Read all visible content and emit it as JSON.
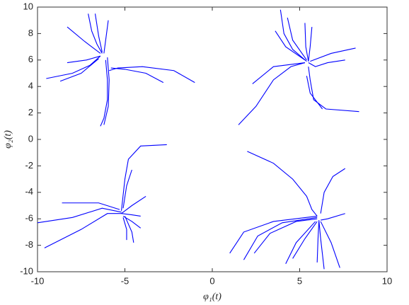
{
  "chart_data": {
    "type": "line",
    "xlabel": "φ₁(t)",
    "ylabel": "φ₂(t)",
    "color": "#0000ff",
    "xlim": [
      -10,
      10
    ],
    "xticks": [
      -10,
      -5,
      0,
      5,
      10
    ],
    "ylim": [
      -10,
      10
    ],
    "yticks": [
      -10,
      -8,
      -6,
      -4,
      -2,
      0,
      2,
      4,
      6,
      8,
      10
    ],
    "grid": false,
    "series": [
      {
        "x": [
          -7.1,
          -6.9,
          -6.6,
          -6.3
        ],
        "values": [
          9.5,
          8.2,
          7.2,
          6.5
        ]
      },
      {
        "x": [
          -8.3,
          -7.3,
          -6.4
        ],
        "values": [
          8.5,
          7.4,
          6.5
        ]
      },
      {
        "x": [
          -5.95,
          -6.1,
          -6.2
        ],
        "values": [
          9.0,
          7.5,
          6.5
        ]
      },
      {
        "x": [
          -6.7,
          -6.5,
          -6.3
        ],
        "values": [
          9.5,
          7.8,
          6.6
        ]
      },
      {
        "x": [
          -9.5,
          -8,
          -7,
          -6.4
        ],
        "values": [
          4.6,
          5.0,
          5.6,
          6.3
        ]
      },
      {
        "x": [
          -8.7,
          -7.5,
          -6.5
        ],
        "values": [
          4.4,
          5.0,
          6.1
        ]
      },
      {
        "x": [
          -8.3,
          -7.2,
          -6.4
        ],
        "values": [
          5.8,
          6.0,
          6.3
        ]
      },
      {
        "x": [
          -1,
          -2.2,
          -4,
          -5.4,
          -5.9
        ],
        "values": [
          4.3,
          5.2,
          5.5,
          5.4,
          5.2
        ]
      },
      {
        "x": [
          -2.8,
          -3.8,
          -5.0,
          -5.8
        ],
        "values": [
          4.3,
          5.0,
          5.3,
          5.4
        ]
      },
      {
        "x": [
          -6.1,
          -6.0,
          -6.0,
          -6.2,
          -6.4
        ],
        "values": [
          6.0,
          4.5,
          3.0,
          1.6,
          1.0
        ]
      },
      {
        "x": [
          -6.0,
          -5.9,
          -5.95,
          -6.2
        ],
        "values": [
          6.2,
          4.5,
          2.5,
          1.1
        ]
      },
      {
        "x": [
          3.9,
          4.1,
          4.6,
          5.4
        ],
        "values": [
          9.8,
          8,
          6.8,
          5.9
        ]
      },
      {
        "x": [
          4.3,
          4.6,
          5.4
        ],
        "values": [
          9.2,
          7.5,
          6.0
        ]
      },
      {
        "x": [
          5.3,
          5.35,
          5.5
        ],
        "values": [
          8.8,
          7,
          5.9
        ]
      },
      {
        "x": [
          5.7,
          5.6,
          5.5
        ],
        "values": [
          8.5,
          7,
          5.9
        ]
      },
      {
        "x": [
          3.6,
          4.2,
          5.3
        ],
        "values": [
          8.2,
          7,
          6.0
        ]
      },
      {
        "x": [
          8.2,
          6.8,
          5.6
        ],
        "values": [
          6.9,
          6.5,
          5.9
        ]
      },
      {
        "x": [
          7.6,
          6.6,
          5.9,
          5.5
        ],
        "values": [
          6.0,
          5.8,
          5.5,
          5.8
        ]
      },
      {
        "x": [
          2.3,
          3.5,
          5.3
        ],
        "values": [
          4.2,
          5.5,
          5.8
        ]
      },
      {
        "x": [
          1.5,
          2.5,
          3.5,
          4.5,
          5.3
        ],
        "values": [
          1.1,
          2.5,
          4.5,
          5.5,
          5.8
        ]
      },
      {
        "x": [
          5.5,
          5.6,
          5.8,
          6.5,
          8.4
        ],
        "values": [
          5.5,
          4.5,
          3,
          2.3,
          2.1
        ]
      },
      {
        "x": [
          5.4,
          5.6,
          6.3
        ],
        "values": [
          4.8,
          3.5,
          2.3
        ]
      },
      {
        "x": [
          -10,
          -8,
          -6.3,
          -5.2
        ],
        "values": [
          -6.3,
          -5.9,
          -5.2,
          -5.5
        ]
      },
      {
        "x": [
          -9.6,
          -7.5,
          -6,
          -5.2
        ],
        "values": [
          -8.2,
          -6.8,
          -5.6,
          -5.6
        ]
      },
      {
        "x": [
          -8.6,
          -6.5,
          -5.3
        ],
        "values": [
          -4.8,
          -4.8,
          -5.3
        ]
      },
      {
        "x": [
          -2.6,
          -4.1,
          -4.8,
          -5.0,
          -5.2
        ],
        "values": [
          -0.4,
          -0.5,
          -1.5,
          -3,
          -5.4
        ]
      },
      {
        "x": [
          -4.6,
          -4.9,
          -5.1
        ],
        "values": [
          -2.3,
          -3.5,
          -5.2
        ]
      },
      {
        "x": [
          -3.8,
          -4.6,
          -5.2
        ],
        "values": [
          -4.3,
          -5.0,
          -5.6
        ]
      },
      {
        "x": [
          -5.1,
          -4.9,
          -4.9
        ],
        "values": [
          -5.9,
          -6.8,
          -7.6
        ]
      },
      {
        "x": [
          -5.0,
          -4.6,
          -4.5
        ],
        "values": [
          -5.8,
          -7.0,
          -7.8
        ]
      },
      {
        "x": [
          -5.1,
          -4.6,
          -4.1
        ],
        "values": [
          -5.8,
          -6.2,
          -6.7
        ]
      },
      {
        "x": [
          -5.2,
          -4.6,
          -4.1
        ],
        "values": [
          -5.6,
          -5.7,
          -5.8
        ]
      },
      {
        "x": [
          2,
          3.5,
          4.6,
          5.4,
          5.7,
          6.0
        ],
        "values": [
          -0.9,
          -1.8,
          -3,
          -4.3,
          -5.3,
          -5.8
        ]
      },
      {
        "x": [
          7.6,
          6.9,
          6.4,
          6.2
        ],
        "values": [
          -2.2,
          -2.8,
          -4,
          -5.6
        ]
      },
      {
        "x": [
          7.6,
          6.6,
          6.2
        ],
        "values": [
          -5.6,
          -6,
          -6.1
        ]
      },
      {
        "x": [
          1.0,
          1.8,
          3.5,
          6.0
        ],
        "values": [
          -8.6,
          -7.0,
          -6.2,
          -5.8
        ]
      },
      {
        "x": [
          1.8,
          2.6,
          4,
          6.0
        ],
        "values": [
          -9.1,
          -7.3,
          -6.3,
          -5.9
        ]
      },
      {
        "x": [
          2.4,
          3.3,
          4.8,
          6.0
        ],
        "values": [
          -8.6,
          -7.1,
          -6.2,
          -6.0
        ]
      },
      {
        "x": [
          4.2,
          4.8,
          5.9
        ],
        "values": [
          -9.4,
          -7.8,
          -6.2
        ]
      },
      {
        "x": [
          4.6,
          5.3,
          6.0
        ],
        "values": [
          -9.0,
          -7.5,
          -6.2
        ]
      },
      {
        "x": [
          6.4,
          6.2,
          6.1
        ],
        "values": [
          -9.8,
          -7.5,
          -6.1
        ]
      },
      {
        "x": [
          7.3,
          6.8,
          6.2
        ],
        "values": [
          -9.7,
          -7.8,
          -6.2
        ]
      },
      {
        "x": [
          6.0,
          6.05,
          6.1
        ],
        "values": [
          -9.3,
          -7.5,
          -6.2
        ]
      }
    ]
  }
}
